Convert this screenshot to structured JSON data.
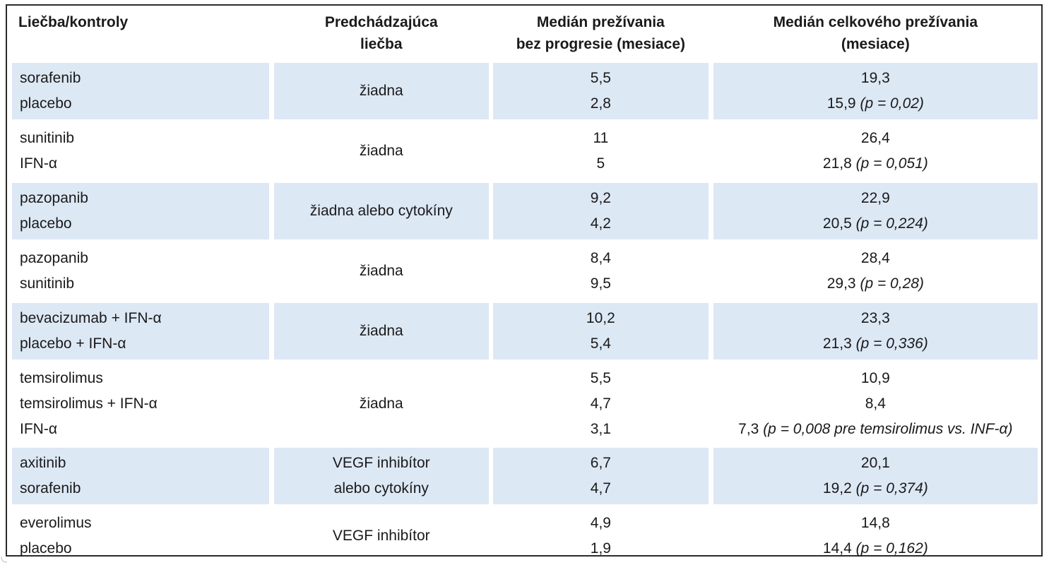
{
  "table": {
    "headers": [
      [
        "Liečba/kontroly"
      ],
      [
        "Predchádzajúca",
        "liečba"
      ],
      [
        "Medián prežívania",
        "bez progresie (mesiace)"
      ],
      [
        "Medián celkového prežívania",
        "(mesiace)"
      ]
    ],
    "rows": [
      {
        "treatments": [
          "sorafenib",
          "placebo"
        ],
        "prior": [
          "žiadna"
        ],
        "pfs": [
          "5,5",
          "2,8"
        ],
        "os": [
          {
            "v": "19,3",
            "p": ""
          },
          {
            "v": "15,9 ",
            "p": "(p = 0,02)"
          }
        ],
        "shaded": true
      },
      {
        "treatments": [
          "sunitinib",
          "IFN-α"
        ],
        "prior": [
          "žiadna"
        ],
        "pfs": [
          "11",
          "5"
        ],
        "os": [
          {
            "v": "26,4",
            "p": ""
          },
          {
            "v": "21,8 ",
            "p": "(p = 0,051)"
          }
        ],
        "shaded": false
      },
      {
        "treatments": [
          "pazopanib",
          "placebo"
        ],
        "prior": [
          "žiadna alebo cytokíny"
        ],
        "pfs": [
          "9,2",
          "4,2"
        ],
        "os": [
          {
            "v": "22,9",
            "p": ""
          },
          {
            "v": "20,5 ",
            "p": "(p = 0,224)"
          }
        ],
        "shaded": true
      },
      {
        "treatments": [
          "pazopanib",
          "sunitinib"
        ],
        "prior": [
          "žiadna"
        ],
        "pfs": [
          "8,4",
          "9,5"
        ],
        "os": [
          {
            "v": "28,4",
            "p": ""
          },
          {
            "v": "29,3 ",
            "p": "(p = 0,28)"
          }
        ],
        "shaded": false
      },
      {
        "treatments": [
          "bevacizumab + IFN-α",
          "placebo + IFN-α"
        ],
        "prior": [
          "žiadna"
        ],
        "pfs": [
          "10,2",
          "5,4"
        ],
        "os": [
          {
            "v": "23,3",
            "p": ""
          },
          {
            "v": "21,3 ",
            "p": "(p = 0,336)"
          }
        ],
        "shaded": true
      },
      {
        "treatments": [
          "temsirolimus",
          "temsirolimus + IFN-α",
          "IFN-α"
        ],
        "prior": [
          "žiadna"
        ],
        "pfs": [
          "5,5",
          "4,7",
          "3,1"
        ],
        "os": [
          {
            "v": "10,9",
            "p": ""
          },
          {
            "v": "8,4",
            "p": ""
          },
          {
            "v": "7,3 ",
            "p": "(p = 0,008 pre temsirolimus vs. INF-α)"
          }
        ],
        "shaded": false
      },
      {
        "treatments": [
          "axitinib",
          "sorafenib"
        ],
        "prior": [
          "VEGF inhibítor",
          "alebo cytokíny"
        ],
        "pfs": [
          "6,7",
          "4,7"
        ],
        "os": [
          {
            "v": "20,1",
            "p": ""
          },
          {
            "v": "19,2 ",
            "p": "(p = 0,374)"
          }
        ],
        "shaded": true
      },
      {
        "treatments": [
          "everolimus",
          "placebo"
        ],
        "prior": [
          "VEGF inhibítor"
        ],
        "pfs": [
          "4,9",
          "1,9"
        ],
        "os": [
          {
            "v": "14,8",
            "p": ""
          },
          {
            "v": "14,4 ",
            "p": "(p = 0,162)"
          }
        ],
        "shaded": false
      }
    ]
  },
  "colors": {
    "row_shade": "#dde8f5",
    "border": "#2b2b2b"
  }
}
